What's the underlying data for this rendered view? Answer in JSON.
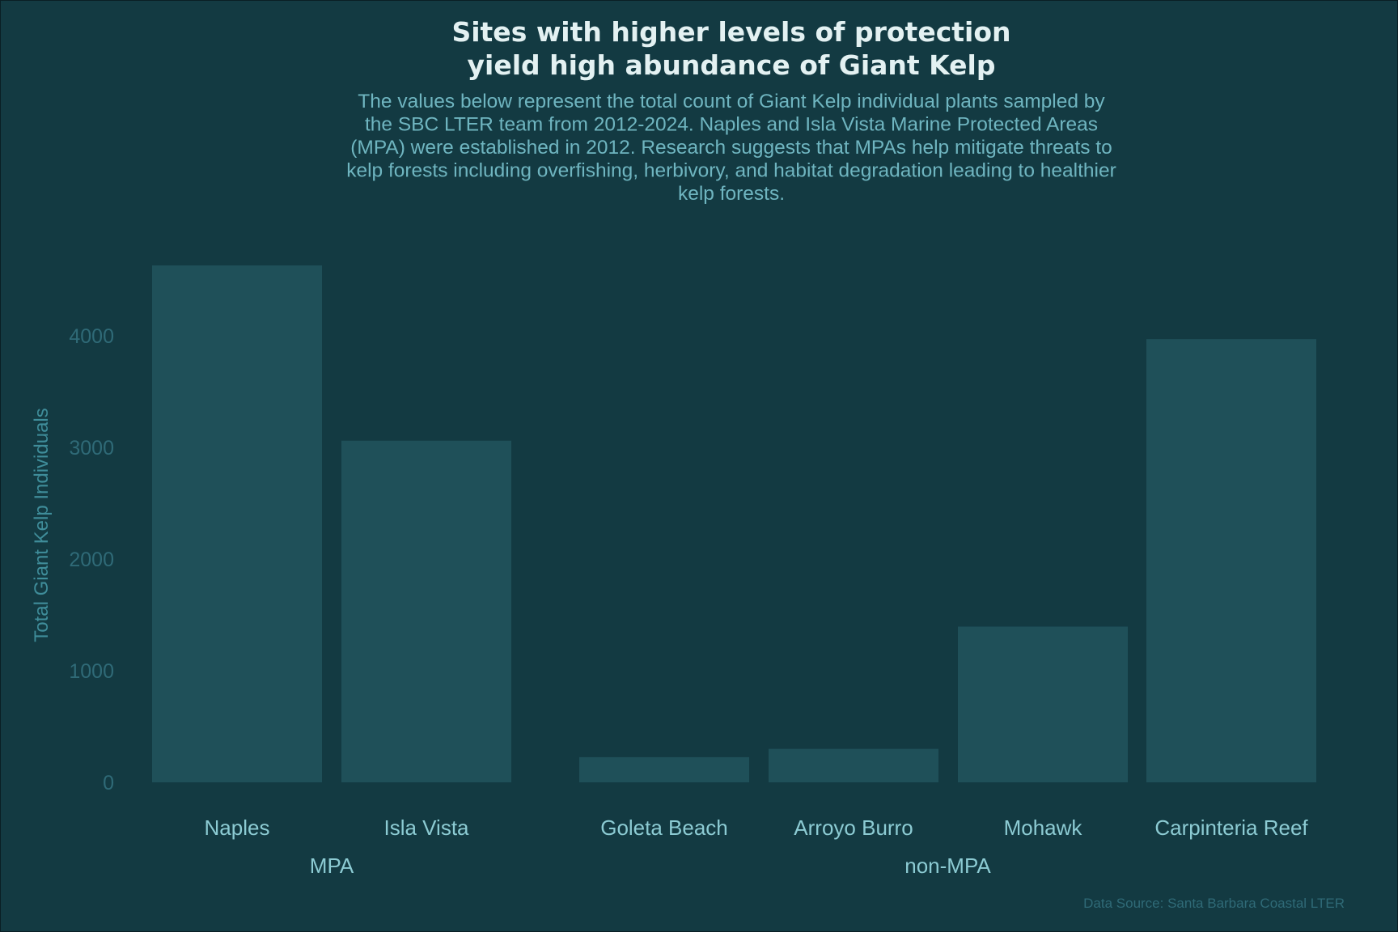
{
  "colors": {
    "background": "#133a42",
    "bar": "#1f5059",
    "title": "#e3f1f2",
    "subtitle": "#6fb5c0",
    "tick": "#2f6a77",
    "axis_label": "#3f8d9a",
    "category": "#8ccbd3"
  },
  "chart_data": {
    "type": "bar",
    "title_lines": [
      "Sites with higher levels of protection",
      "yield high abundance of Giant Kelp"
    ],
    "subtitle_lines": [
      "The values below represent the total count of Giant Kelp individual plants sampled by",
      "the SBC LTER team from 2012-2024.  Naples and Isla Vista Marine Protected Areas",
      "(MPA) were established in 2012. Research suggests that MPAs help mitigate threats to",
      "kelp forests including overfishing, herbivory, and habitat degradation leading to healthier",
      "kelp forests."
    ],
    "xlabel": "",
    "ylabel": "Total Giant Kelp Individuals",
    "ylim": [
      0,
      4800
    ],
    "yticks": [
      0,
      1000,
      2000,
      3000,
      4000
    ],
    "grid": false,
    "legend": "none",
    "groups": [
      {
        "name": "MPA",
        "categories": [
          "Naples",
          "Isla Vista"
        ],
        "values": [
          4630,
          3060
        ]
      },
      {
        "name": "non-MPA",
        "categories": [
          "Goleta Beach",
          "Arroyo Burro",
          "Mohawk",
          "Carpinteria Reef"
        ],
        "values": [
          225,
          300,
          1395,
          3970
        ]
      }
    ],
    "caption": "Data Source: Santa Barbara Coastal LTER"
  }
}
